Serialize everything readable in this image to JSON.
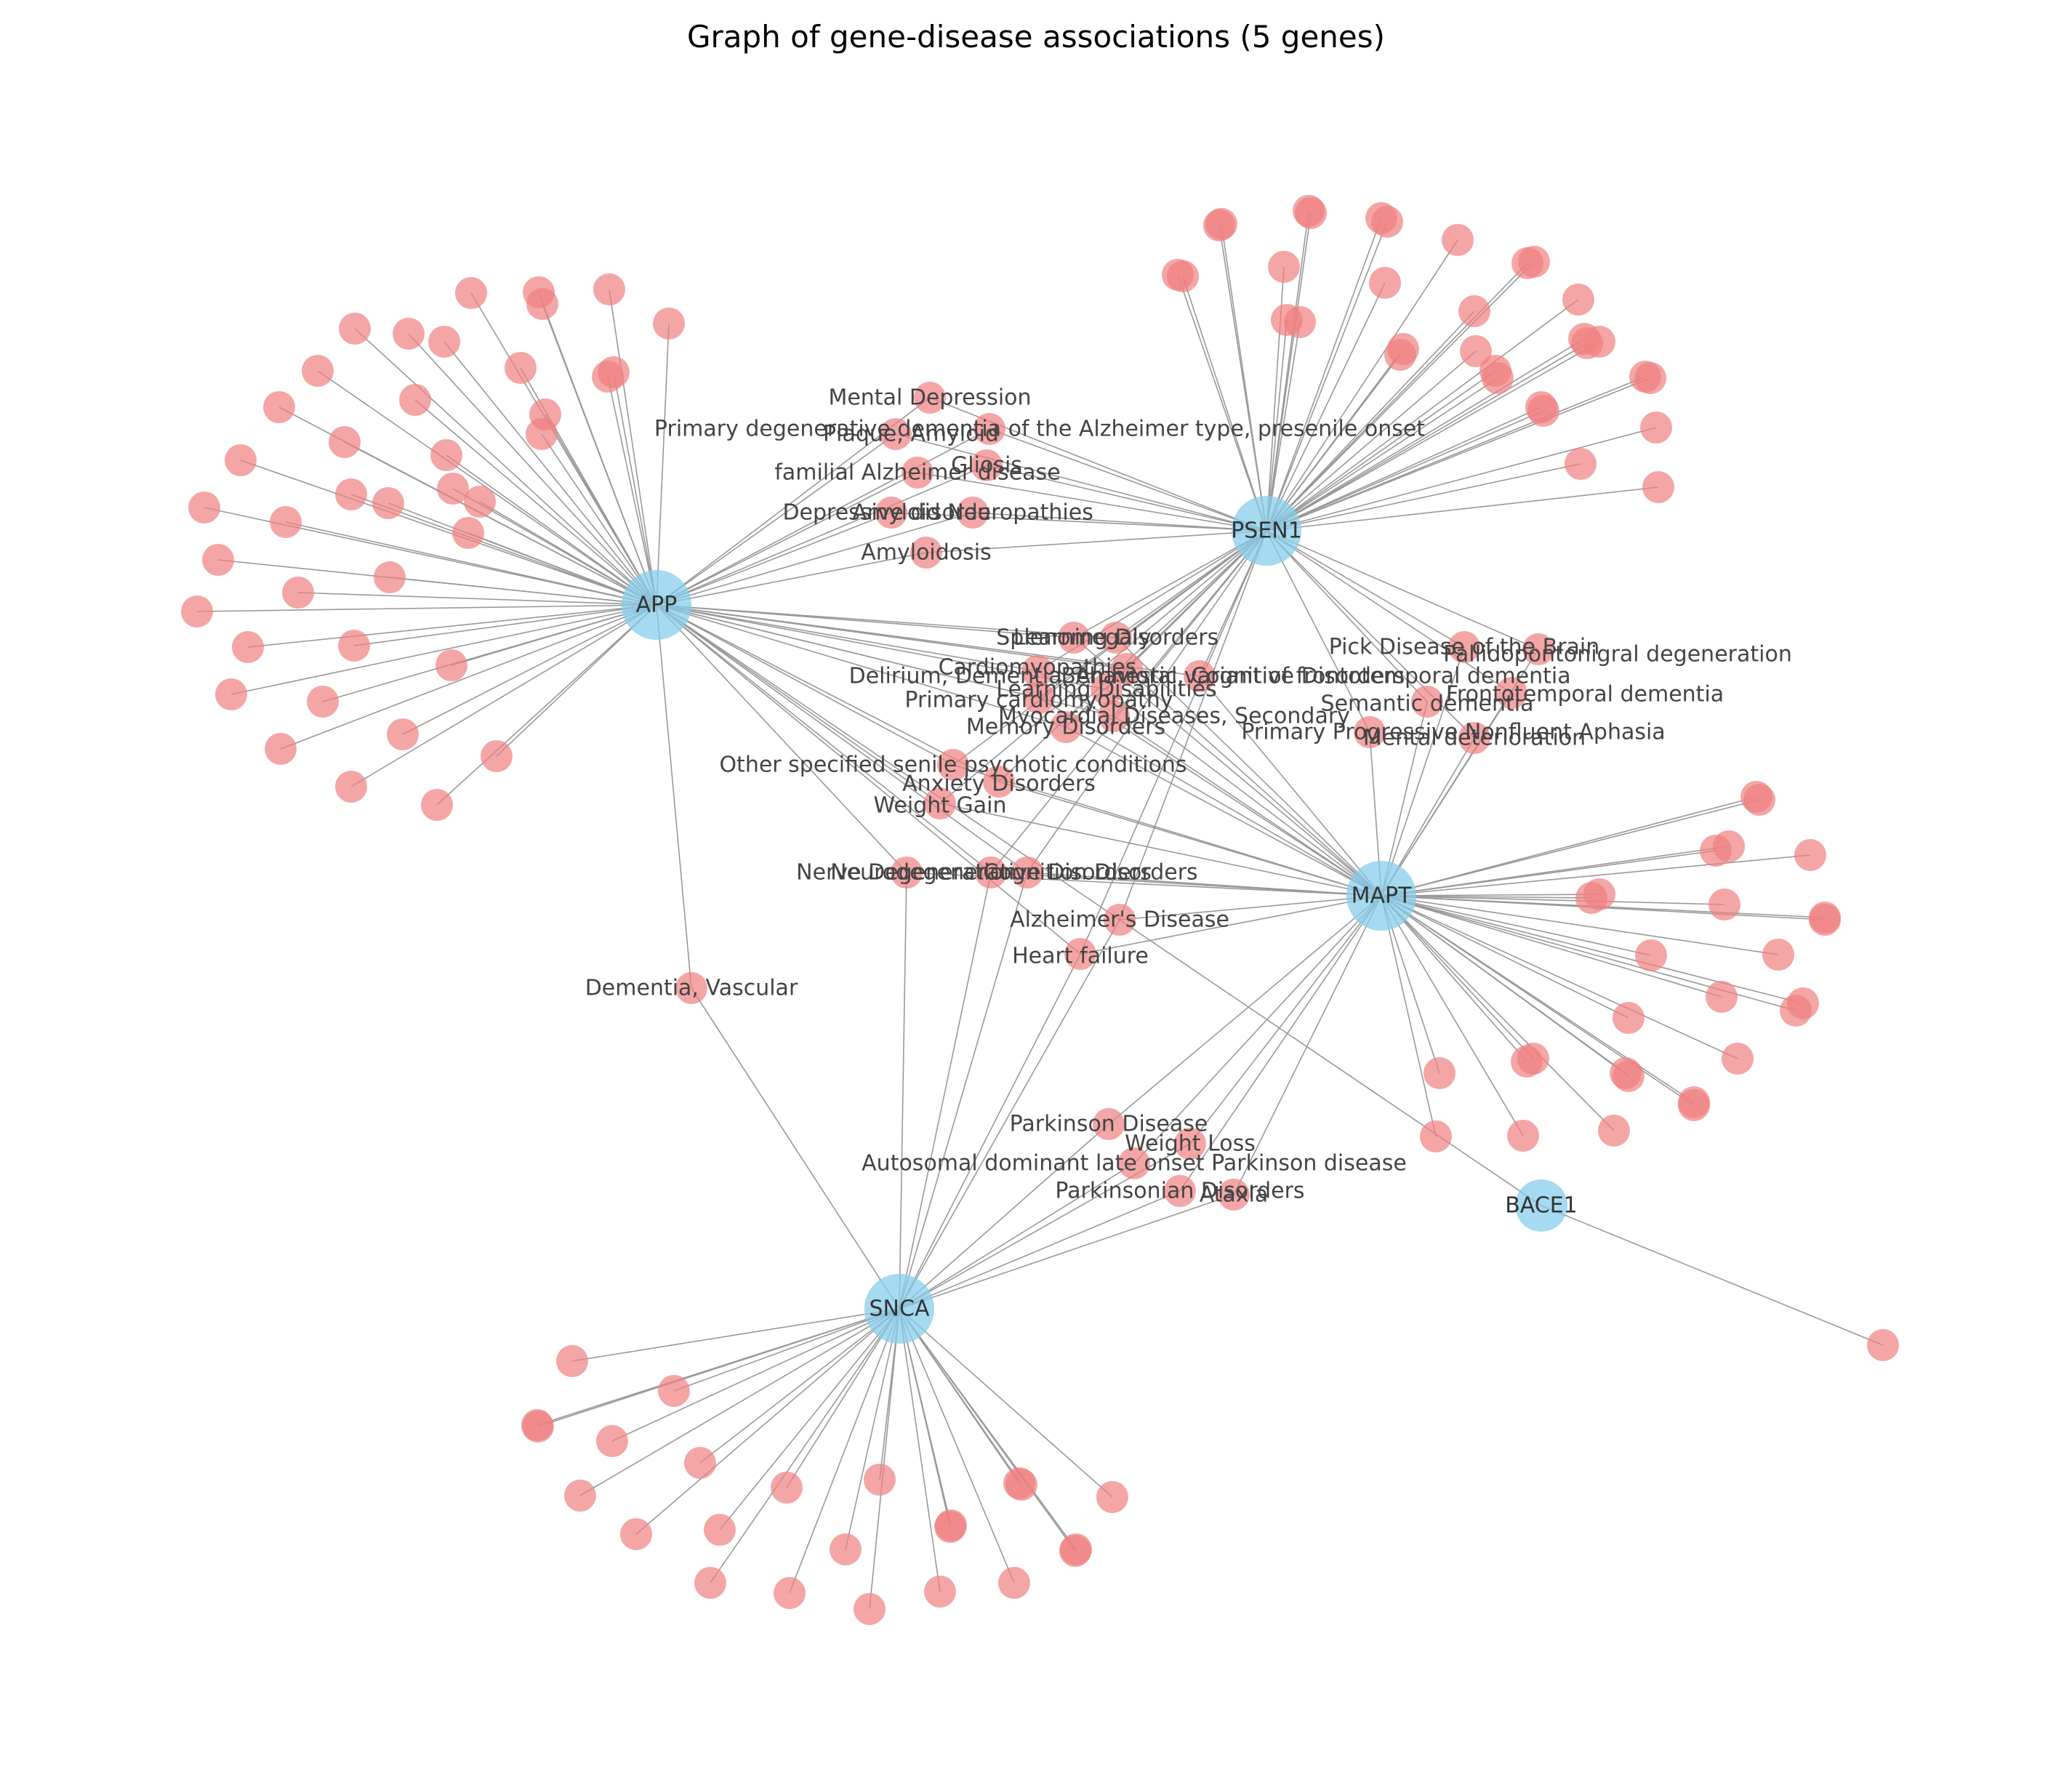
{
  "title": "Graph of gene-disease associations (5 genes)",
  "colors": {
    "gene_node": "#87CEEB",
    "disease_node": "#F08080",
    "edge": "#999999",
    "label": "#444444"
  },
  "genes": [
    "APP",
    "PSEN1",
    "MAPT",
    "SNCA",
    "BACE1"
  ],
  "labeled_diseases": [
    {
      "label": "Mental Depression",
      "genes": [
        "APP",
        "PSEN1"
      ]
    },
    {
      "label": "Primary degenerative dementia of the Alzheimer type, presenile onset",
      "genes": [
        "APP",
        "PSEN1"
      ]
    },
    {
      "label": "Plaque, Amyloid",
      "genes": [
        "APP",
        "PSEN1"
      ]
    },
    {
      "label": "Gliosis",
      "genes": [
        "APP",
        "PSEN1"
      ]
    },
    {
      "label": "familial Alzheimer disease",
      "genes": [
        "APP",
        "PSEN1"
      ]
    },
    {
      "label": "Depressive disorder",
      "genes": [
        "APP",
        "PSEN1"
      ]
    },
    {
      "label": "Amyloid Neuropathies",
      "genes": [
        "APP",
        "PSEN1"
      ]
    },
    {
      "label": "Amyloidosis",
      "genes": [
        "APP",
        "PSEN1"
      ]
    },
    {
      "label": "Learning Disorders",
      "genes": [
        "APP",
        "PSEN1",
        "MAPT"
      ]
    },
    {
      "label": "Splenomegaly",
      "genes": [
        "APP",
        "PSEN1",
        "MAPT"
      ]
    },
    {
      "label": "Cardiomyopathies",
      "genes": [
        "APP",
        "PSEN1",
        "MAPT"
      ]
    },
    {
      "label": "Delirium, Dementia, Amnestic, Cognitive Disorders",
      "genes": [
        "APP",
        "PSEN1",
        "MAPT"
      ]
    },
    {
      "label": "Behavioral variant of frontotemporal dementia",
      "genes": [
        "APP",
        "PSEN1",
        "MAPT"
      ]
    },
    {
      "label": "Learning Disabilities",
      "genes": [
        "APP",
        "PSEN1",
        "MAPT"
      ]
    },
    {
      "label": "Primary cardiomyopathy",
      "genes": [
        "APP",
        "PSEN1",
        "MAPT"
      ]
    },
    {
      "label": "Myocardial Diseases, Secondary",
      "genes": [
        "APP",
        "PSEN1",
        "MAPT"
      ]
    },
    {
      "label": "Memory Disorders",
      "genes": [
        "APP",
        "PSEN1",
        "MAPT"
      ]
    },
    {
      "label": "Pick Disease of the Brain",
      "genes": [
        "PSEN1",
        "MAPT"
      ]
    },
    {
      "label": "Pallidopontonigral degeneration",
      "genes": [
        "PSEN1",
        "MAPT"
      ]
    },
    {
      "label": "Semantic dementia",
      "genes": [
        "PSEN1",
        "MAPT"
      ]
    },
    {
      "label": "Frontotemporal dementia",
      "genes": [
        "PSEN1",
        "MAPT"
      ]
    },
    {
      "label": "Primary Progressive Nonfluent Aphasia",
      "genes": [
        "PSEN1",
        "MAPT"
      ]
    },
    {
      "label": "Mental deterioration",
      "genes": [
        "PSEN1",
        "MAPT"
      ]
    },
    {
      "label": "Other specified senile psychotic conditions",
      "genes": [
        "APP",
        "PSEN1",
        "MAPT"
      ]
    },
    {
      "label": "Anxiety Disorders",
      "genes": [
        "APP",
        "PSEN1",
        "MAPT"
      ]
    },
    {
      "label": "Weight Gain",
      "genes": [
        "APP",
        "PSEN1",
        "MAPT"
      ]
    },
    {
      "label": "Nerve Degeneration",
      "genes": [
        "APP",
        "MAPT",
        "SNCA"
      ]
    },
    {
      "label": "Neurodegenerative Disorders",
      "genes": [
        "APP",
        "PSEN1",
        "MAPT",
        "SNCA"
      ]
    },
    {
      "label": "Cognition Disorders",
      "genes": [
        "APP",
        "PSEN1",
        "MAPT",
        "SNCA"
      ]
    },
    {
      "label": "Alzheimer's Disease",
      "genes": [
        "APP",
        "PSEN1",
        "MAPT",
        "SNCA"
      ]
    },
    {
      "label": "Heart failure",
      "genes": [
        "APP",
        "PSEN1",
        "MAPT",
        "SNCA"
      ]
    },
    {
      "label": "Dementia, Vascular",
      "genes": [
        "APP",
        "SNCA"
      ]
    },
    {
      "label": "Parkinson Disease",
      "genes": [
        "MAPT",
        "SNCA"
      ]
    },
    {
      "label": "Weight Loss",
      "genes": [
        "MAPT",
        "SNCA"
      ]
    },
    {
      "label": "Autosomal dominant late onset Parkinson disease",
      "genes": [
        "MAPT",
        "SNCA"
      ]
    },
    {
      "label": "Parkinsonian Disorders",
      "genes": [
        "MAPT",
        "SNCA"
      ]
    },
    {
      "label": "Ataxia",
      "genes": [
        "MAPT",
        "SNCA"
      ]
    }
  ],
  "unlabeled_disease_counts": {
    "APP": 40,
    "PSEN1": 32,
    "MAPT": 27,
    "SNCA": 24,
    "BACE1": 1
  },
  "extra_edges": [
    [
      "BACE1",
      "Alzheimer's Disease"
    ]
  ]
}
